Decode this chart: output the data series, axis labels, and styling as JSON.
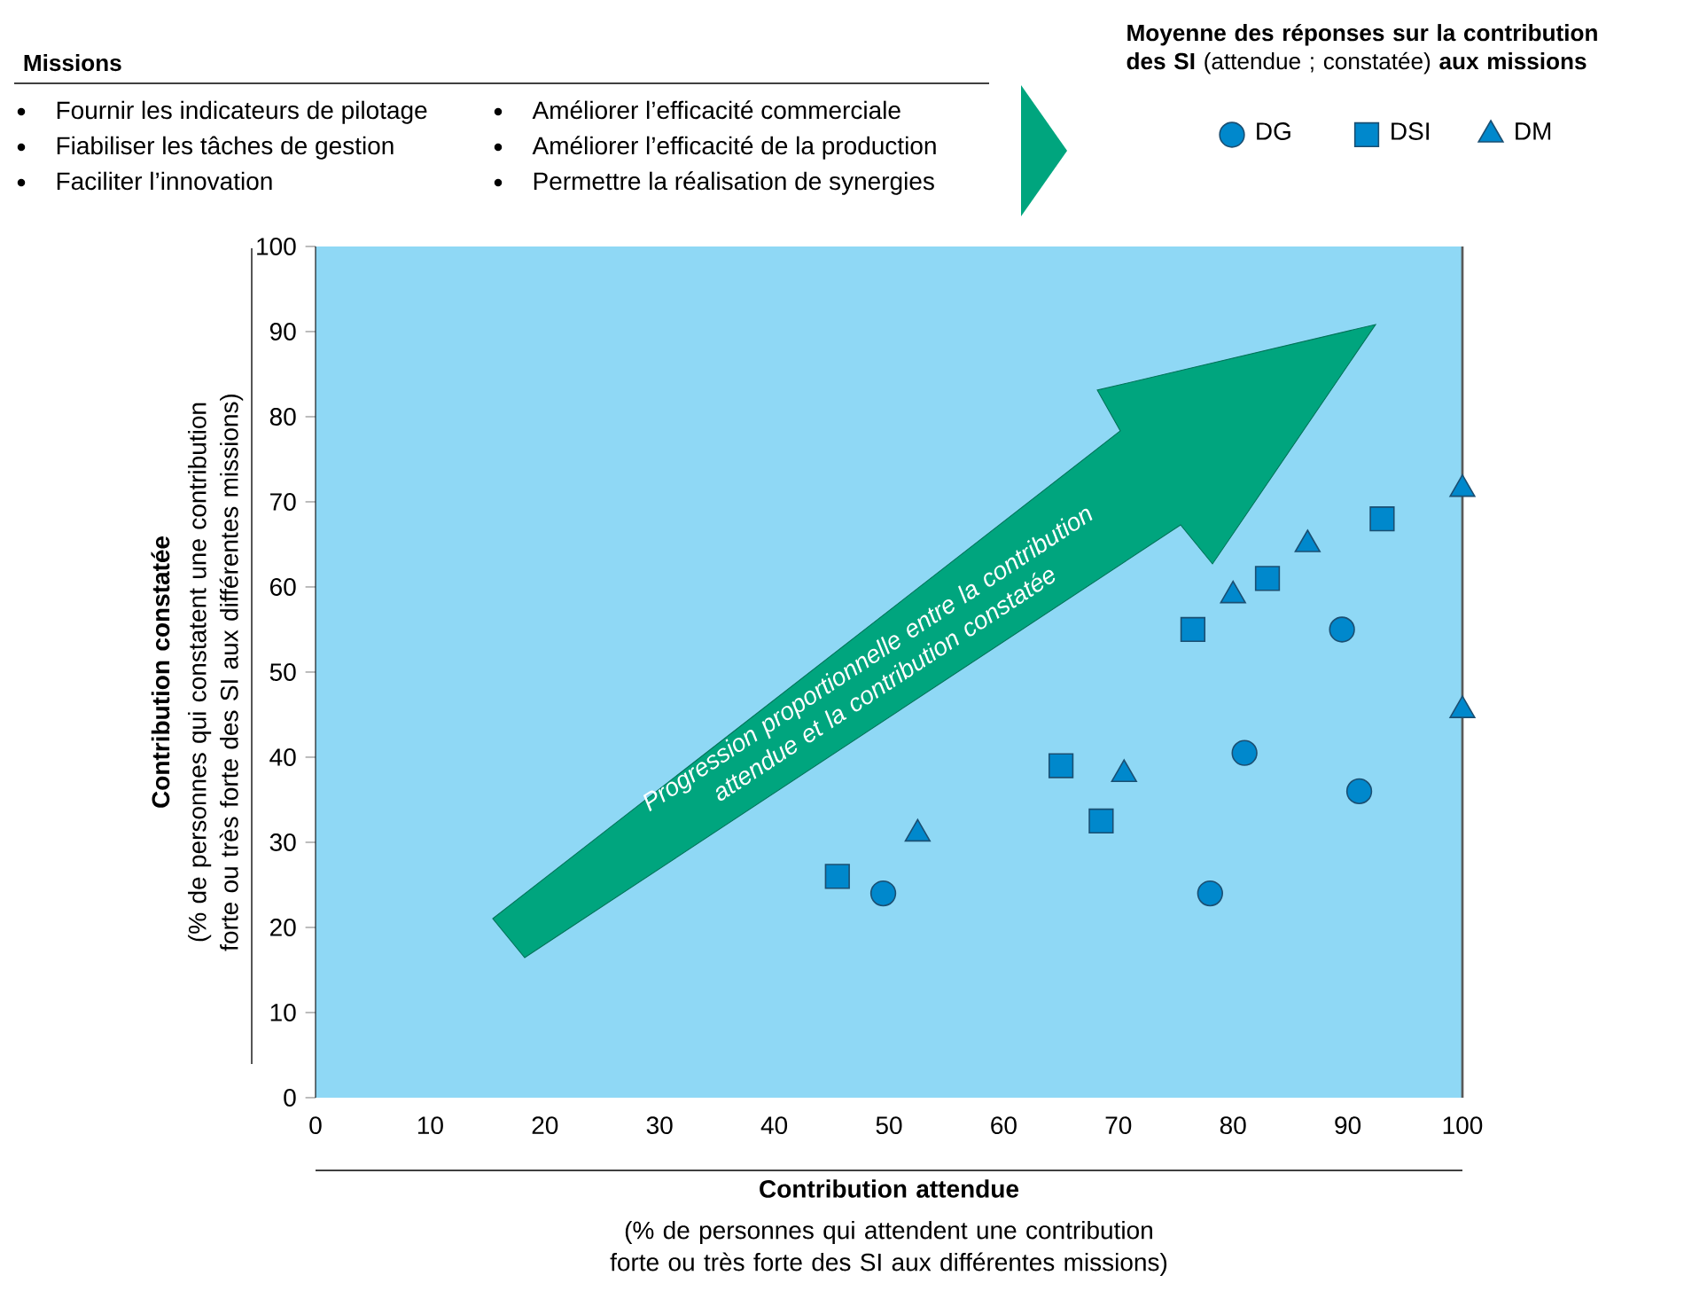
{
  "chart_data": {
    "type": "scatter",
    "xlabel": "Contribution attendue",
    "ylabel": "Contribution constatée",
    "legend_title": "**Moyenne des réponses sur la contribution des SI** (attendue ; constatée) **aux missions**",
    "legend": "top right",
    "xlim": [
      0,
      100
    ],
    "ylim": [
      0,
      100
    ],
    "xticks": [
      0,
      10,
      20,
      30,
      40,
      50,
      60,
      70,
      80,
      90,
      100
    ],
    "yticks": [
      0,
      10,
      20,
      30,
      40,
      50,
      60,
      70,
      80,
      90,
      100
    ],
    "series": [
      {
        "name": "DG",
        "color": "#0088cc",
        "marker": "circle",
        "x": [
          49.5,
          78,
          81,
          89.5,
          91
        ],
        "values": [
          24,
          24,
          40.5,
          55,
          36
        ]
      },
      {
        "name": "DSI",
        "color": "#0088cc",
        "marker": "square",
        "x": [
          45.5,
          65,
          68.5,
          76.5,
          83,
          93
        ],
        "values": [
          26,
          39,
          32.5,
          55,
          61,
          68
        ]
      },
      {
        "name": "DM",
        "color": "#0088cc",
        "marker": "triangle",
        "x": [
          52.5,
          70.5,
          80,
          86.5,
          100,
          100
        ],
        "values": [
          31,
          38,
          59,
          65,
          71.5,
          45.5
        ]
      }
    ],
    "annotations": [
      "Missions",
      "Fournir les indicateurs de pilotage",
      "Fiabiliser les tâches de gestion",
      "Faciliter l’innovation",
      "Améliorer l’efficacité commerciale",
      "Améliorer l’efficacité de la production",
      "Permettre la réalisation de synergies",
      "Progression proportionnelle entre la contribution attendue et la contribution constatée",
      "(% de personnes qui attendent une contribution forte ou très forte des SI aux différentes missions)",
      "(% de personnes qui constatent une contribution forte ou très forte des SI aux différentes missions)"
    ]
  }
}
